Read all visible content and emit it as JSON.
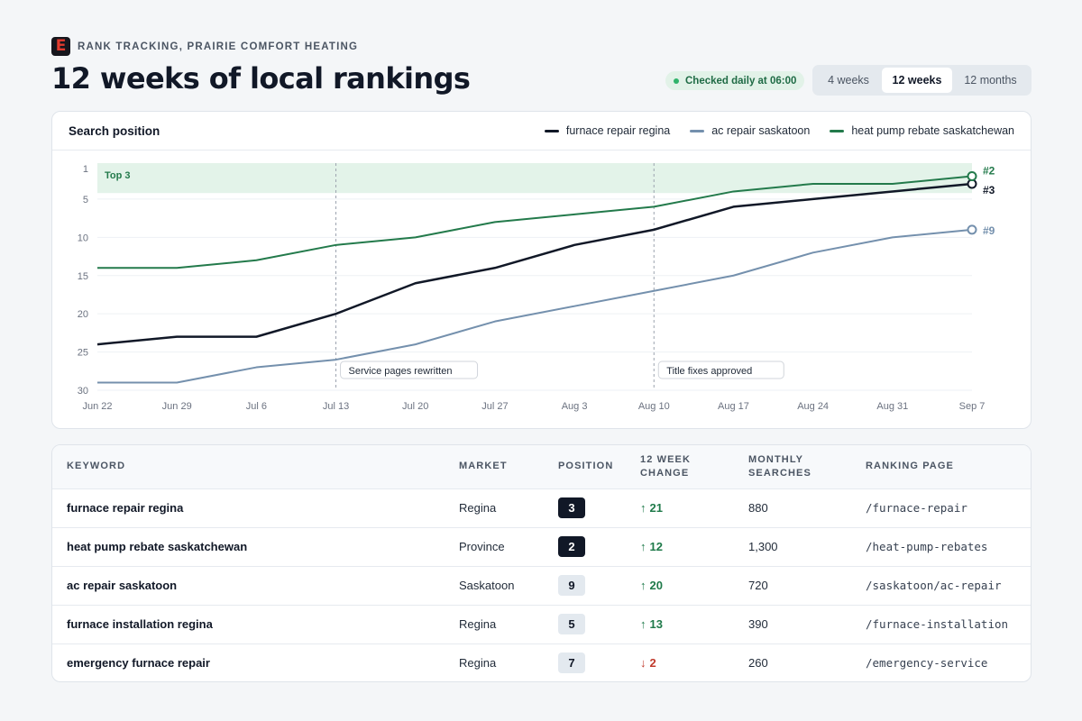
{
  "header": {
    "logo_letter": "E",
    "eyebrow": "RANK TRACKING, PRAIRIE COMFORT HEATING",
    "title": "12 weeks of local rankings",
    "checked_label": "Checked daily at 06:00"
  },
  "range_tabs": [
    {
      "label": "4 weeks",
      "active": false
    },
    {
      "label": "12 weeks",
      "active": true
    },
    {
      "label": "12 months",
      "active": false
    }
  ],
  "chart_card": {
    "title": "Search position"
  },
  "chart_data": {
    "type": "line",
    "x": [
      "Jun 22",
      "Jun 29",
      "Jul 6",
      "Jul 13",
      "Jul 20",
      "Jul 27",
      "Aug 3",
      "Aug 10",
      "Aug 17",
      "Aug 24",
      "Aug 31",
      "Sep 7"
    ],
    "y_ticks": [
      1,
      5,
      10,
      15,
      20,
      25,
      30
    ],
    "ylim": [
      1,
      30
    ],
    "y_inverted": true,
    "grid": true,
    "legend_position": "top-right",
    "band": {
      "label": "Top 3",
      "from": 1,
      "to": 3,
      "color": "#e3f3e9"
    },
    "annotations": [
      {
        "x": "Jul 13",
        "label": "Service pages rewritten"
      },
      {
        "x": "Aug 10",
        "label": "Title fixes approved"
      }
    ],
    "series": [
      {
        "name": "furnace repair regina",
        "color": "#111827",
        "end_label": "#3",
        "values": [
          24,
          23,
          23,
          20,
          16,
          14,
          11,
          9,
          6,
          5,
          4,
          3
        ]
      },
      {
        "name": "ac repair saskatoon",
        "color": "#7490ad",
        "end_label": "#9",
        "values": [
          29,
          29,
          27,
          26,
          24,
          21,
          19,
          17,
          15,
          12,
          10,
          9
        ]
      },
      {
        "name": "heat pump rebate saskatchewan",
        "color": "#237a4b",
        "end_label": "#2",
        "values": [
          14,
          14,
          13,
          11,
          10,
          8,
          7,
          6,
          4,
          3,
          3,
          2
        ]
      }
    ]
  },
  "table": {
    "headers": [
      "KEYWORD",
      "MARKET",
      "POSITION",
      "12 WEEK CHANGE",
      "MONTHLY SEARCHES",
      "RANKING PAGE"
    ],
    "header_lines": {
      "change": [
        "12 WEEK",
        "CHANGE"
      ],
      "searches": [
        "MONTHLY",
        "SEARCHES"
      ]
    },
    "rows": [
      {
        "keyword": "furnace repair regina",
        "market": "Regina",
        "position": "3",
        "change": "21",
        "direction": "up",
        "searches": "880",
        "page": "/furnace-repair"
      },
      {
        "keyword": "heat pump rebate saskatchewan",
        "market": "Province",
        "position": "2",
        "change": "12",
        "direction": "up",
        "searches": "1,300",
        "page": "/heat-pump-rebates"
      },
      {
        "keyword": "ac repair saskatoon",
        "market": "Saskatoon",
        "position": "9",
        "change": "20",
        "direction": "up",
        "searches": "720",
        "page": "/saskatoon/ac-repair"
      },
      {
        "keyword": "furnace installation regina",
        "market": "Regina",
        "position": "5",
        "change": "13",
        "direction": "up",
        "searches": "390",
        "page": "/furnace-installation"
      },
      {
        "keyword": "emergency furnace repair",
        "market": "Regina",
        "position": "7",
        "change": "2",
        "direction": "down",
        "searches": "260",
        "page": "/emergency-service"
      }
    ]
  }
}
